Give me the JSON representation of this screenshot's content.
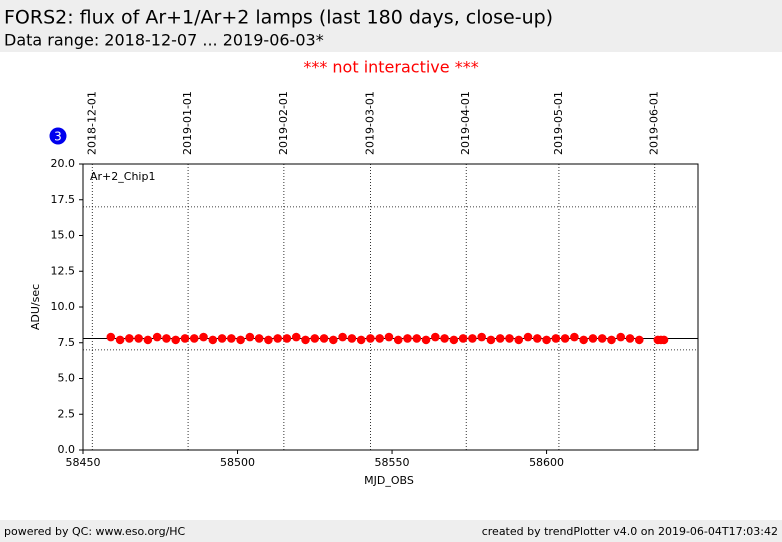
{
  "chart_data": {
    "type": "scatter",
    "title": "FORS2: flux of Ar+1/Ar+2 lamps (last 180 days, close-up)",
    "subtitle": "Data range: 2018-12-07 ... 2019-06-03*",
    "notice": "*** not interactive ***",
    "badge": "3",
    "xlabel": "MJD_OBS",
    "ylabel": "ADU/sec",
    "series": [
      {
        "name": "Ar+2_Chip1",
        "color": "#ff0000",
        "x": [
          58459,
          58462,
          58465,
          58468,
          58471,
          58474,
          58477,
          58480,
          58483,
          58486,
          58489,
          58492,
          58495,
          58498,
          58501,
          58504,
          58507,
          58510,
          58513,
          58516,
          58519,
          58522,
          58525,
          58528,
          58531,
          58534,
          58537,
          58540,
          58543,
          58546,
          58549,
          58552,
          58555,
          58558,
          58561,
          58564,
          58567,
          58570,
          58573,
          58576,
          58579,
          58582,
          58585,
          58588,
          58591,
          58594,
          58597,
          58600,
          58603,
          58606,
          58609,
          58612,
          58615,
          58618,
          58621,
          58624,
          58627,
          58630,
          58636,
          58637,
          58638
        ],
        "values": [
          7.9,
          7.7,
          7.8,
          7.8,
          7.7,
          7.9,
          7.8,
          7.7,
          7.8,
          7.8,
          7.9,
          7.7,
          7.8,
          7.8,
          7.7,
          7.9,
          7.8,
          7.7,
          7.8,
          7.8,
          7.9,
          7.7,
          7.8,
          7.8,
          7.7,
          7.9,
          7.8,
          7.7,
          7.8,
          7.8,
          7.9,
          7.7,
          7.8,
          7.8,
          7.7,
          7.9,
          7.8,
          7.7,
          7.8,
          7.8,
          7.9,
          7.7,
          7.8,
          7.8,
          7.7,
          7.9,
          7.8,
          7.7,
          7.8,
          7.8,
          7.9,
          7.7,
          7.8,
          7.8,
          7.7,
          7.9,
          7.8,
          7.7,
          7.7,
          7.7,
          7.7
        ]
      }
    ],
    "xlim": [
      58450,
      58649
    ],
    "xticks": [
      58450,
      58500,
      58550,
      58600
    ],
    "x2ticks": [
      {
        "value": 58453,
        "label": "2018-12-01"
      },
      {
        "value": 58484,
        "label": "2019-01-01"
      },
      {
        "value": 58515,
        "label": "2019-02-01"
      },
      {
        "value": 58543,
        "label": "2019-03-01"
      },
      {
        "value": 58574,
        "label": "2019-04-01"
      },
      {
        "value": 58604,
        "label": "2019-05-01"
      },
      {
        "value": 58635,
        "label": "2019-06-01"
      }
    ],
    "ylim": [
      0,
      20
    ],
    "yticks": [
      {
        "value": 0,
        "label": "0.0"
      },
      {
        "value": 2.5,
        "label": "2.5"
      },
      {
        "value": 5,
        "label": "5.0"
      },
      {
        "value": 7.5,
        "label": "7.5"
      },
      {
        "value": 10,
        "label": "10.0"
      },
      {
        "value": 12.5,
        "label": "12.5"
      },
      {
        "value": 15,
        "label": "15.0"
      },
      {
        "value": 17.5,
        "label": "17.5"
      },
      {
        "value": 20,
        "label": "20.0"
      }
    ],
    "reference_lines": [
      {
        "value": 7.8,
        "style": "solid"
      },
      {
        "value": 17,
        "style": "dotted"
      },
      {
        "value": 7,
        "style": "dotted"
      }
    ],
    "footer_left": "powered by QC: www.eso.org/HC",
    "footer_right": "created by trendPlotter v4.0 on 2019-06-04T17:03:42"
  }
}
